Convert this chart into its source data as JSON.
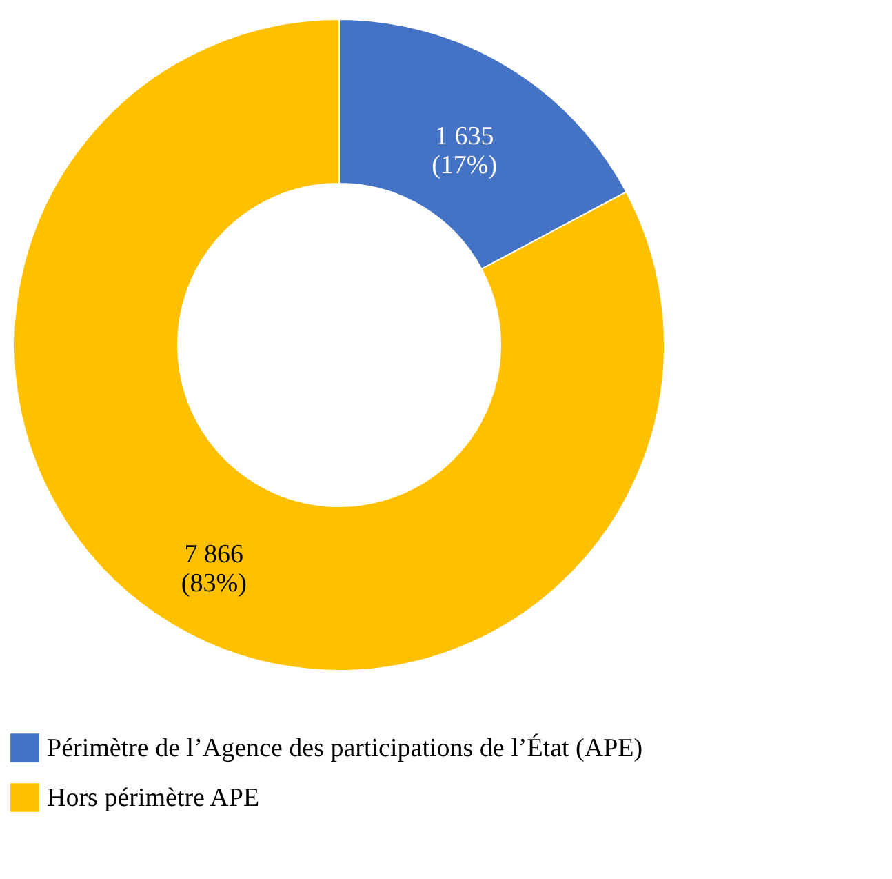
{
  "chart_data": {
    "type": "donut",
    "categories": [
      "Périmètre de l’Agence des participations de l’État (APE)",
      "Hors périmètre APE"
    ],
    "values": [
      1635,
      7866
    ],
    "colors": [
      "#4472c4",
      "#ffc000"
    ],
    "value_labels": [
      "1 635\n(17%)",
      "7 866\n(83%)"
    ],
    "legend": "bottom left"
  }
}
